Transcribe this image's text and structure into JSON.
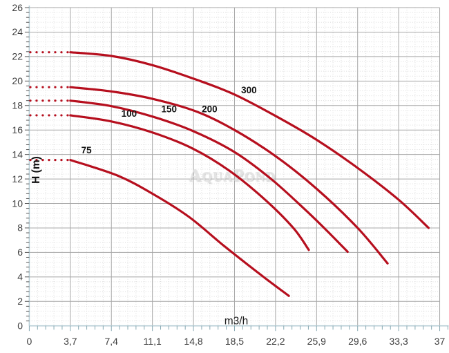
{
  "chart_data": {
    "type": "line",
    "title": "",
    "xlabel": "m3/h",
    "ylabel": "H (m)",
    "xlim": [
      0,
      37
    ],
    "ylim": [
      0,
      26
    ],
    "grid": "major-solid-gray, minor-dotted-light",
    "legend_position": "inline-labels-on-curves",
    "x_ticks": [
      {
        "value": 0,
        "label": "0"
      },
      {
        "value": 3.7,
        "label": "3,7"
      },
      {
        "value": 7.4,
        "label": "7,4"
      },
      {
        "value": 11.1,
        "label": "11,1"
      },
      {
        "value": 14.8,
        "label": "14,8"
      },
      {
        "value": 18.5,
        "label": "18,5"
      },
      {
        "value": 22.2,
        "label": "22,2"
      },
      {
        "value": 25.9,
        "label": "25,9"
      },
      {
        "value": 29.6,
        "label": "29,6"
      },
      {
        "value": 33.3,
        "label": "33,3"
      },
      {
        "value": 37,
        "label": "37"
      }
    ],
    "y_ticks": [
      {
        "value": 0,
        "label": "0"
      },
      {
        "value": 2,
        "label": "2"
      },
      {
        "value": 4,
        "label": "4"
      },
      {
        "value": 6,
        "label": "6"
      },
      {
        "value": 8,
        "label": "8"
      },
      {
        "value": 10,
        "label": "10"
      },
      {
        "value": 12,
        "label": "12"
      },
      {
        "value": 14,
        "label": "14"
      },
      {
        "value": 16,
        "label": "16"
      },
      {
        "value": 18,
        "label": "18"
      },
      {
        "value": 20,
        "label": "20"
      },
      {
        "value": 22,
        "label": "22"
      },
      {
        "value": 24,
        "label": "24"
      },
      {
        "value": 26,
        "label": "26"
      }
    ],
    "series": [
      {
        "name": "75",
        "label": "75",
        "label_pos": [
          5.15,
          14.35
        ],
        "dotted_lead_in": {
          "from": 0,
          "to": 3.7,
          "h": 13.55
        },
        "points": [
          [
            3.7,
            13.55
          ],
          [
            7.9,
            12.3
          ],
          [
            11.1,
            10.8
          ],
          [
            14.4,
            8.9
          ],
          [
            17.6,
            6.5
          ],
          [
            20.9,
            4.15
          ],
          [
            23.4,
            2.45
          ]
        ]
      },
      {
        "name": "100",
        "label": "100",
        "label_pos": [
          9.0,
          17.35
        ],
        "dotted_lead_in": {
          "from": 0,
          "to": 3.7,
          "h": 17.2
        },
        "points": [
          [
            3.7,
            17.2
          ],
          [
            7.4,
            16.7
          ],
          [
            11.1,
            15.8
          ],
          [
            14.7,
            14.5
          ],
          [
            18.0,
            12.7
          ],
          [
            21.2,
            10.35
          ],
          [
            23.8,
            8.0
          ],
          [
            25.2,
            6.2
          ]
        ]
      },
      {
        "name": "150",
        "label": "150",
        "label_pos": [
          12.6,
          17.7
        ],
        "dotted_lead_in": {
          "from": 0,
          "to": 3.7,
          "h": 18.4
        },
        "points": [
          [
            3.7,
            18.4
          ],
          [
            7.4,
            17.95
          ],
          [
            11.1,
            17.1
          ],
          [
            14.8,
            15.9
          ],
          [
            18.5,
            14.2
          ],
          [
            21.8,
            12.0
          ],
          [
            24.8,
            9.55
          ],
          [
            26.8,
            7.8
          ],
          [
            28.7,
            6.05
          ]
        ]
      },
      {
        "name": "200",
        "label": "200",
        "label_pos": [
          16.25,
          17.7
        ],
        "dotted_lead_in": {
          "from": 0,
          "to": 3.7,
          "h": 19.5
        },
        "points": [
          [
            3.7,
            19.5
          ],
          [
            7.4,
            19.15
          ],
          [
            11.1,
            18.55
          ],
          [
            15.1,
            17.5
          ],
          [
            18.5,
            16.0
          ],
          [
            22.3,
            13.8
          ],
          [
            25.9,
            11.2
          ],
          [
            29.6,
            8.0
          ],
          [
            32.3,
            5.1
          ]
        ]
      },
      {
        "name": "300",
        "label": "300",
        "label_pos": [
          19.8,
          19.25
        ],
        "dotted_lead_in": {
          "from": 0,
          "to": 3.7,
          "h": 22.35
        },
        "points": [
          [
            3.7,
            22.35
          ],
          [
            7.4,
            22.05
          ],
          [
            11.1,
            21.3
          ],
          [
            15.1,
            20.1
          ],
          [
            18.5,
            18.9
          ],
          [
            22.3,
            17.1
          ],
          [
            25.9,
            15.2
          ],
          [
            29.6,
            12.9
          ],
          [
            33.3,
            10.3
          ],
          [
            36.0,
            8.0
          ]
        ]
      }
    ],
    "watermark": "AquaPond"
  },
  "colors": {
    "curve": "#b60f1e",
    "major_grid": "#a7a7a7",
    "minor_grid": "#dcdcdc",
    "axis_line": "#b7ced6",
    "x_tick": "#86a8b2",
    "y_tick": "#555555",
    "tick_label": "#3e3e3e",
    "curve_label": "#121212",
    "watermark": "#e0e0e0",
    "background": "#ffffff"
  }
}
